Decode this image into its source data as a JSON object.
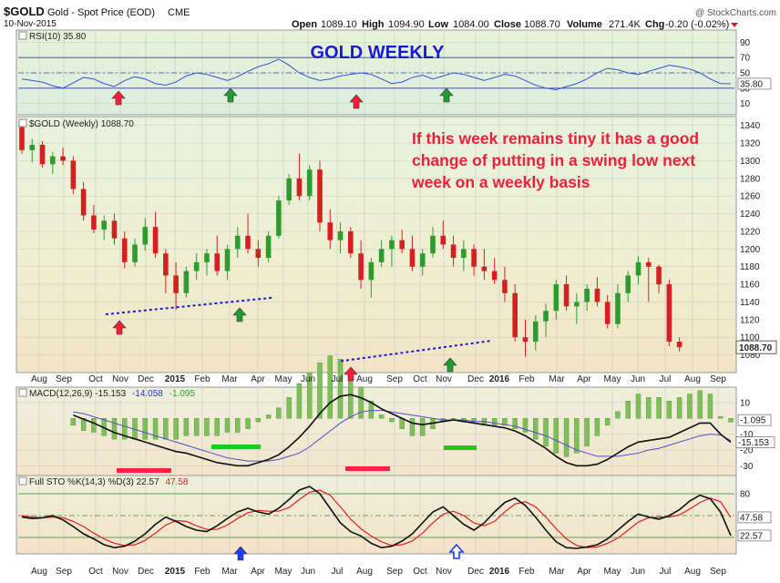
{
  "header": {
    "symbol": "$GOLD",
    "name": "Gold - Spot Price (EOD)",
    "exchange": "CME",
    "date": "10-Nov-2015",
    "watermark": "@ StockCharts.com",
    "open_label": "Open",
    "open_value": "1089.10",
    "high_label": "High",
    "high_value": "1094.90",
    "low_label": "Low",
    "low_value": "1084.00",
    "close_label": "Close",
    "close_value": "1088.70",
    "volume_label": "Volume",
    "volume_value": "271.4K",
    "chg_label": "Chg",
    "chg_value": "-0.20 (-0.02%)"
  },
  "annotations": {
    "gold_weekly": "GOLD WEEKLY",
    "comment_lines": [
      "If this week remains tiny it has a good",
      "change of putting in a swing low next",
      "week on a weekly basis"
    ]
  },
  "colors": {
    "up": "#2e9b2e",
    "down": "#d42020",
    "annotation_red": "#e8213d",
    "annotation_blue": "#1a1ad0",
    "arrow_red": "#ff1a3a",
    "arrow_green": "#1e9e2e",
    "arrow_blue": "#1a3cff",
    "bar_green": "#22c422",
    "bar_red": "#ff2046"
  },
  "chart_data": [
    {
      "type": "line",
      "panel": "rsi",
      "legend": "RSI(10) 35.80",
      "ylim": [
        0,
        100
      ],
      "y_ticks": [
        "90",
        "70",
        "50",
        "30",
        "10"
      ],
      "reference_lines": [
        70,
        50,
        30
      ],
      "last_value_label": "35.80",
      "series": [
        {
          "name": "RSI(10)",
          "values": [
            42,
            40,
            38,
            33,
            30,
            37,
            44,
            42,
            36,
            32,
            40,
            45,
            42,
            36,
            34,
            38,
            46,
            50,
            48,
            44,
            40,
            45,
            52,
            58,
            62,
            68,
            60,
            50,
            44,
            40,
            42,
            46,
            48,
            50,
            48,
            42,
            36,
            38,
            44,
            47,
            42,
            46,
            50,
            48,
            44,
            40,
            44,
            48,
            46,
            40,
            34,
            30,
            28,
            32,
            36,
            42,
            50,
            56,
            54,
            50,
            48,
            52,
            56,
            60,
            58,
            55,
            50,
            42,
            36,
            35.8
          ]
        }
      ]
    },
    {
      "type": "candlestick",
      "panel": "price",
      "legend": "$GOLD (Weekly) 1088.70",
      "ylim": [
        1060,
        1350
      ],
      "y_ticks": [
        "1340",
        "1320",
        "1300",
        "1280",
        "1260",
        "1240",
        "1220",
        "1200",
        "1180",
        "1160",
        "1140",
        "1120",
        "1100",
        "1080"
      ],
      "last_value_label": "1088.70",
      "x_tick_labels": [
        "Aug",
        "Sep",
        "Oct",
        "Nov",
        "Dec",
        "2015",
        "Feb",
        "Mar",
        "Apr",
        "May",
        "Jun",
        "Jul",
        "Aug",
        "Sep",
        "Oct",
        "Nov",
        "Dec",
        "2016",
        "Feb",
        "Mar",
        "Apr",
        "May",
        "Jun",
        "Jul",
        "Aug",
        "Sep"
      ],
      "candles": [
        [
          1338,
          1345,
          1308,
          1312
        ],
        [
          1312,
          1325,
          1298,
          1318
        ],
        [
          1318,
          1322,
          1292,
          1296
        ],
        [
          1296,
          1310,
          1285,
          1305
        ],
        [
          1305,
          1315,
          1295,
          1300
        ],
        [
          1300,
          1305,
          1262,
          1268
        ],
        [
          1268,
          1276,
          1232,
          1238
        ],
        [
          1238,
          1250,
          1218,
          1222
        ],
        [
          1222,
          1238,
          1210,
          1232
        ],
        [
          1232,
          1240,
          1205,
          1212
        ],
        [
          1212,
          1220,
          1178,
          1185
        ],
        [
          1185,
          1212,
          1180,
          1205
        ],
        [
          1205,
          1235,
          1198,
          1225
        ],
        [
          1225,
          1242,
          1190,
          1195
        ],
        [
          1195,
          1200,
          1150,
          1170
        ],
        [
          1170,
          1185,
          1131,
          1150
        ],
        [
          1150,
          1180,
          1145,
          1175
        ],
        [
          1175,
          1195,
          1165,
          1185
        ],
        [
          1185,
          1200,
          1170,
          1195
        ],
        [
          1195,
          1215,
          1170,
          1175
        ],
        [
          1175,
          1205,
          1165,
          1200
        ],
        [
          1200,
          1225,
          1190,
          1215
        ],
        [
          1215,
          1240,
          1195,
          1200
        ],
        [
          1200,
          1210,
          1180,
          1190
        ],
        [
          1190,
          1220,
          1185,
          1215
        ],
        [
          1215,
          1260,
          1212,
          1255
        ],
        [
          1255,
          1285,
          1250,
          1280
        ],
        [
          1280,
          1308,
          1255,
          1260
        ],
        [
          1260,
          1295,
          1255,
          1290
        ],
        [
          1290,
          1300,
          1220,
          1230
        ],
        [
          1230,
          1245,
          1200,
          1210
        ],
        [
          1210,
          1230,
          1195,
          1220
        ],
        [
          1220,
          1225,
          1190,
          1195
        ],
        [
          1195,
          1210,
          1155,
          1165
        ],
        [
          1165,
          1190,
          1145,
          1185
        ],
        [
          1185,
          1210,
          1180,
          1200
        ],
        [
          1200,
          1215,
          1180,
          1210
        ],
        [
          1210,
          1222,
          1195,
          1200
        ],
        [
          1200,
          1215,
          1175,
          1180
        ],
        [
          1180,
          1200,
          1170,
          1195
        ],
        [
          1195,
          1225,
          1190,
          1215
        ],
        [
          1215,
          1232,
          1200,
          1205
        ],
        [
          1205,
          1215,
          1180,
          1190
        ],
        [
          1190,
          1210,
          1175,
          1200
        ],
        [
          1200,
          1205,
          1170,
          1180
        ],
        [
          1180,
          1200,
          1165,
          1175
        ],
        [
          1175,
          1190,
          1160,
          1165
        ],
        [
          1165,
          1180,
          1140,
          1150
        ],
        [
          1150,
          1160,
          1095,
          1100
        ],
        [
          1100,
          1120,
          1078,
          1095
        ],
        [
          1095,
          1125,
          1085,
          1118
        ],
        [
          1118,
          1138,
          1100,
          1130
        ],
        [
          1130,
          1165,
          1120,
          1160
        ],
        [
          1160,
          1170,
          1130,
          1135
        ],
        [
          1135,
          1150,
          1115,
          1140
        ],
        [
          1140,
          1160,
          1130,
          1155
        ],
        [
          1155,
          1168,
          1135,
          1140
        ],
        [
          1140,
          1148,
          1110,
          1115
        ],
        [
          1115,
          1160,
          1110,
          1150
        ],
        [
          1150,
          1175,
          1140,
          1170
        ],
        [
          1170,
          1192,
          1160,
          1185
        ],
        [
          1185,
          1190,
          1140,
          1180
        ],
        [
          1180,
          1182,
          1150,
          1160
        ],
        [
          1160,
          1165,
          1090,
          1095
        ],
        [
          1095,
          1100,
          1084,
          1088.7
        ]
      ]
    },
    {
      "type": "bar+line",
      "panel": "macd",
      "legend_main": "MACD(12,26,9) -15.153",
      "legend_signal": "-14.058",
      "legend_hist": "-1.095",
      "ylim": [
        -35,
        18
      ],
      "y_ticks": [
        "10",
        "-10",
        "-20",
        "-30"
      ],
      "hist_label": "-1.095",
      "last_value_label": "-15.153",
      "series": [
        {
          "name": "MACD",
          "values": [
            2,
            -0.5,
            -3,
            -6,
            -9,
            -11,
            -13,
            -15,
            -17,
            -19,
            -21,
            -22,
            -24,
            -26,
            -28,
            -29,
            -30,
            -30,
            -28,
            -26,
            -23,
            -18,
            -12,
            -5,
            3,
            10,
            14,
            15,
            13,
            10,
            6,
            3,
            0,
            -3,
            -4,
            -3,
            -2,
            -1,
            -2,
            -3,
            -4,
            -5,
            -6,
            -8,
            -11,
            -15,
            -19,
            -24,
            -28,
            -30,
            -30,
            -29,
            -26,
            -22,
            -18,
            -15,
            -14,
            -13,
            -12,
            -9,
            -6,
            -3,
            -3,
            -10,
            -15.153
          ]
        },
        {
          "name": "Signal",
          "values": [
            4,
            3,
            1,
            -1,
            -3,
            -5,
            -7,
            -9,
            -11,
            -13,
            -15,
            -17,
            -19,
            -21,
            -23,
            -25,
            -26,
            -27,
            -27,
            -27,
            -26,
            -24,
            -22,
            -18,
            -13,
            -8,
            -3,
            1,
            4,
            5,
            5,
            4,
            3,
            2,
            1,
            0,
            -1,
            -1,
            -1,
            -2,
            -2,
            -3,
            -4,
            -5,
            -7,
            -9,
            -11,
            -14,
            -17,
            -20,
            -22,
            -24,
            -24,
            -24,
            -23,
            -22,
            -20,
            -19,
            -17,
            -15,
            -13,
            -11,
            -10,
            -10.5,
            -14.058
          ]
        }
      ]
    },
    {
      "type": "line",
      "panel": "stochastic",
      "legend_main": "Full STO %K(14,3) %D(3) 22.57",
      "legend_d": "47.58",
      "ylim": [
        0,
        100
      ],
      "y_ticks": [
        "80",
        "50",
        "20"
      ],
      "reference_lines": [
        80,
        50,
        20
      ],
      "last_value_labels": [
        "47.58",
        "22.57"
      ],
      "series": [
        {
          "name": "%K",
          "values": [
            48,
            46,
            47,
            50,
            44,
            35,
            25,
            18,
            10,
            6,
            8,
            15,
            25,
            38,
            48,
            42,
            35,
            30,
            28,
            36,
            46,
            55,
            60,
            55,
            52,
            60,
            72,
            85,
            90,
            80,
            60,
            40,
            28,
            22,
            12,
            6,
            8,
            15,
            25,
            40,
            55,
            62,
            50,
            38,
            30,
            40,
            55,
            68,
            74,
            64,
            48,
            30,
            14,
            6,
            5,
            7,
            10,
            18,
            30,
            42,
            52,
            48,
            45,
            50,
            58,
            70,
            78,
            73,
            55,
            22.57
          ]
        },
        {
          "name": "%D",
          "values": [
            50,
            48,
            47,
            48,
            47,
            42,
            35,
            26,
            18,
            12,
            9,
            10,
            16,
            26,
            37,
            43,
            42,
            36,
            31,
            31,
            37,
            46,
            54,
            57,
            56,
            56,
            61,
            72,
            82,
            85,
            78,
            62,
            45,
            32,
            22,
            14,
            9,
            10,
            15,
            26,
            40,
            52,
            56,
            50,
            40,
            36,
            42,
            55,
            66,
            69,
            62,
            48,
            32,
            18,
            9,
            6,
            7,
            12,
            19,
            30,
            41,
            47,
            48,
            48,
            51,
            59,
            68,
            74,
            69,
            47.58
          ]
        }
      ]
    }
  ]
}
